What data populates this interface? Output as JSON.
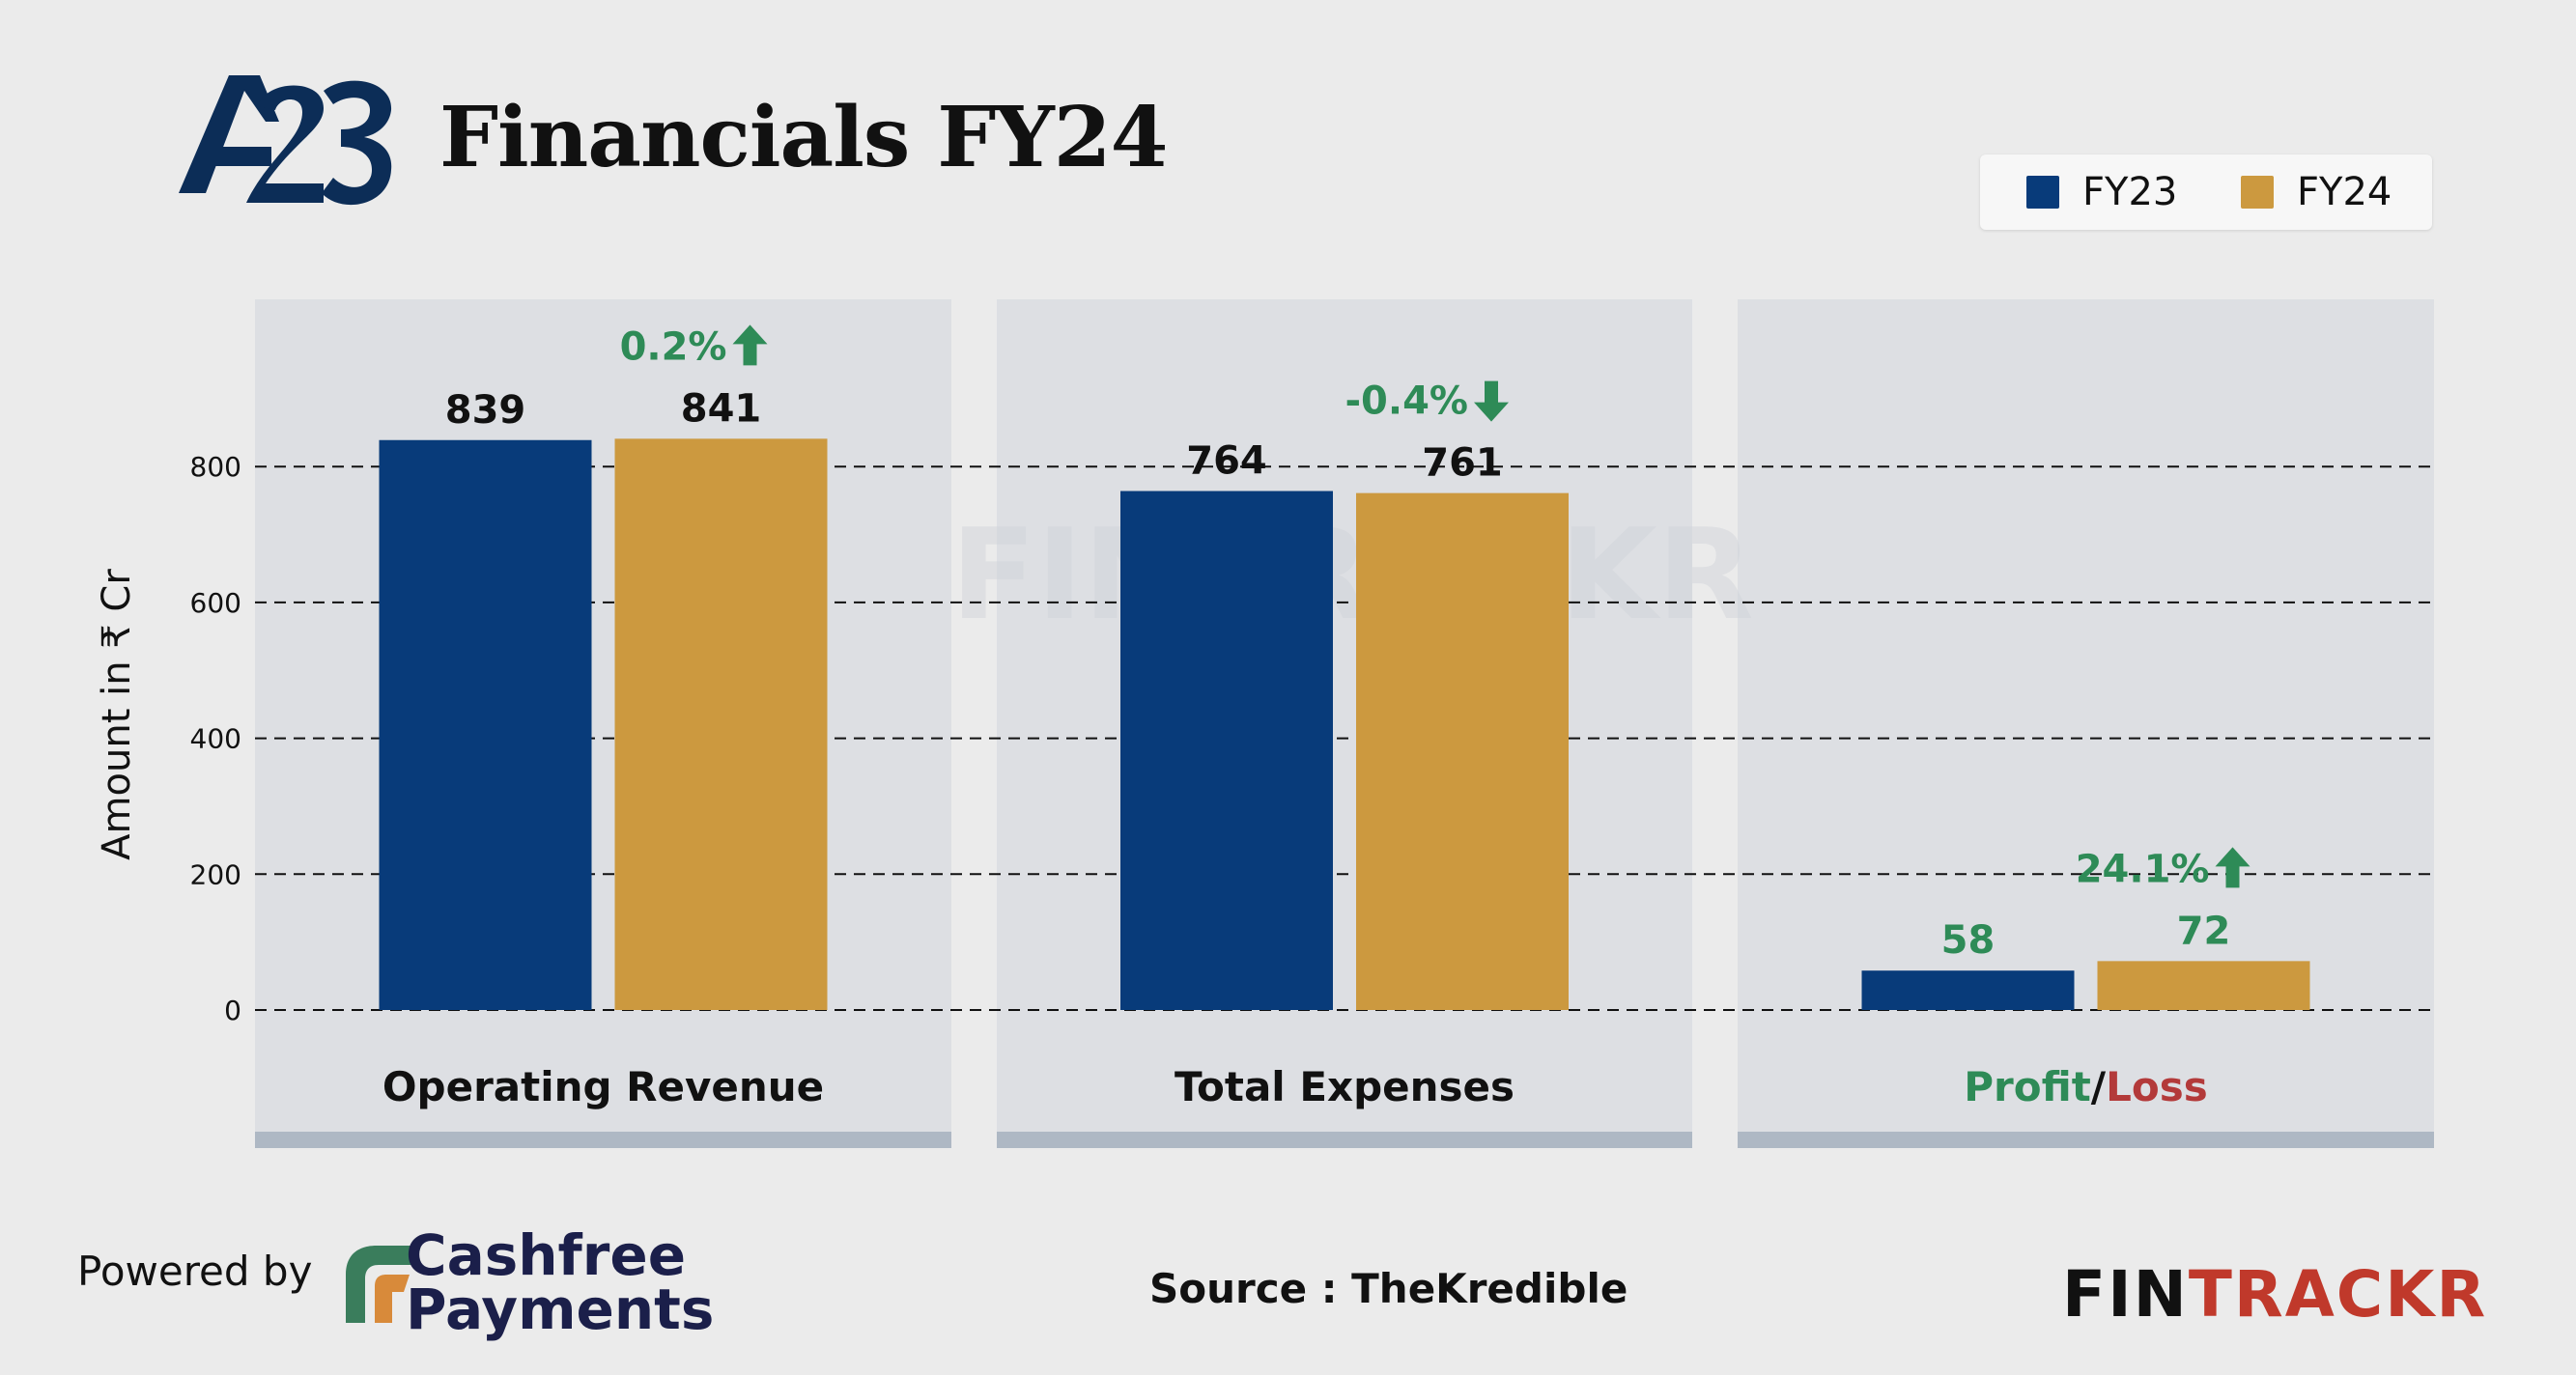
{
  "header": {
    "logo_text": "A23",
    "title": "Financials FY24"
  },
  "legend": [
    {
      "label": "FY23",
      "color": "#083b7a"
    },
    {
      "label": "FY24",
      "color": "#cc993f"
    }
  ],
  "chart_data": {
    "type": "bar",
    "title": "Financials FY24",
    "ylabel": "Amount in ₹ Cr",
    "xlabel": "",
    "ylim": [
      -87,
      987
    ],
    "yticks": [
      0,
      200,
      400,
      600,
      800
    ],
    "grid": true,
    "legend_position": "top-right",
    "categories": [
      "Operating Revenue",
      "Total Expenses",
      "Profit/Loss"
    ],
    "series": [
      {
        "name": "FY23",
        "color": "#083b7a",
        "values": [
          839,
          764,
          58
        ]
      },
      {
        "name": "FY24",
        "color": "#cc993f",
        "values": [
          841,
          761,
          72
        ]
      }
    ],
    "changes": [
      {
        "label": "0.2%",
        "direction": "up",
        "color": "#2e8b57"
      },
      {
        "label": "-0.4%",
        "direction": "down",
        "color": "#2e8b57"
      },
      {
        "label": "24.1%",
        "direction": "up",
        "color": "#2e8b57"
      }
    ],
    "profit_loss_label": {
      "profit": "Profit",
      "separator": "/",
      "loss": "Loss",
      "profit_color": "#2e8b57",
      "loss_color": "#b33a3a"
    },
    "watermark": "FINTRACKR"
  },
  "footer": {
    "powered_by": "Powered by",
    "sponsor_line1": "Cashfree",
    "sponsor_line2": "Payments",
    "source": "Source : TheKredible",
    "brand_fin": "FIN",
    "brand_trackr": "TRACKR"
  }
}
